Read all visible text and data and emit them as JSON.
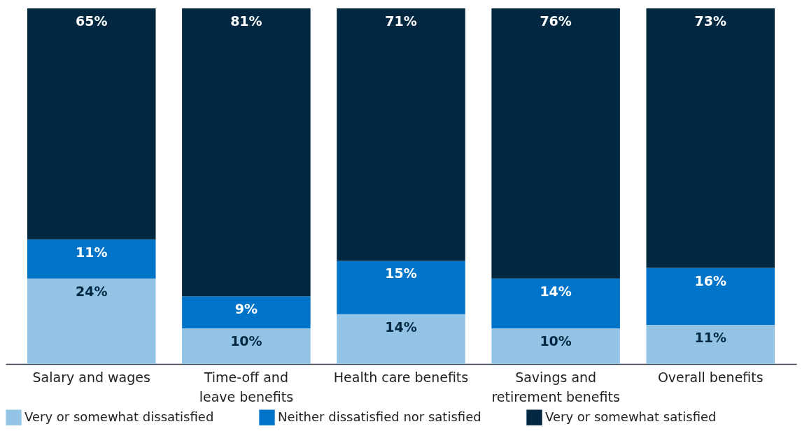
{
  "chart_data": {
    "type": "bar",
    "stacked": true,
    "legend": "bottom",
    "categories": [
      "Salary and wages",
      "Time-off and leave benefits",
      "Health care benefits",
      "Savings and retirement benefits",
      "Overall benefits"
    ],
    "series": [
      {
        "name": "Very or somewhat dissatisfied",
        "color": "#93c4e6",
        "values": [
          24,
          10,
          14,
          10,
          11
        ],
        "value_labels": [
          "24%",
          "10%",
          "14%",
          "10%",
          "11%"
        ]
      },
      {
        "name": "Neither dissatisfied nor satisfied",
        "color": "#0074c8",
        "values": [
          11,
          9,
          15,
          14,
          16
        ],
        "value_labels": [
          "11%",
          "9%",
          "15%",
          "14%",
          "16%"
        ]
      },
      {
        "name": "Very or somewhat satisfied",
        "color": "#012840",
        "values": [
          65,
          81,
          71,
          76,
          73
        ],
        "value_labels": [
          "65%",
          "81%",
          "71%",
          "76%",
          "73%"
        ]
      }
    ]
  }
}
